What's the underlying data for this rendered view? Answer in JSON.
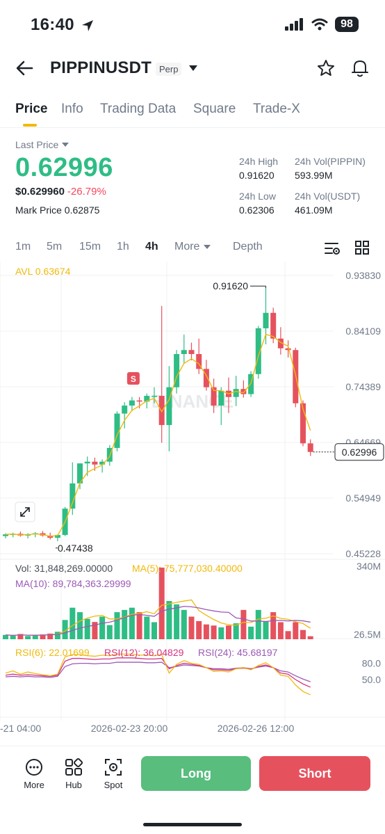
{
  "status_bar": {
    "time": "16:40",
    "battery": "98"
  },
  "header": {
    "title": "PIPPINUSDT",
    "badge": "Perp"
  },
  "tabs": [
    {
      "label": "Price"
    },
    {
      "label": "Info"
    },
    {
      "label": "Trading Data"
    },
    {
      "label": "Square"
    },
    {
      "label": "Trade-X"
    }
  ],
  "price": {
    "last_price_label": "Last Price",
    "last_price": "0.62996",
    "usd_price": "$0.629960",
    "change": "-26.79%",
    "mark_label": "Mark Price",
    "mark_price": "0.62875"
  },
  "stats": {
    "high_label": "24h High",
    "high_value": "0.91620",
    "low_label": "24h Low",
    "low_value": "0.62306",
    "vol_base_label": "24h Vol(PIPPIN)",
    "vol_base_value": "593.99M",
    "vol_quote_label": "24h Vol(USDT)",
    "vol_quote_value": "461.09M"
  },
  "intervals": {
    "items": [
      "1m",
      "5m",
      "15m",
      "1h",
      "4h"
    ],
    "active": "4h",
    "more": "More",
    "depth": "Depth"
  },
  "indicators": {
    "avl": "AVL 0.63674",
    "vol": "Vol: 31,848,269.00000",
    "vol_ma5": "MA(5): 75,777,030.40000",
    "vol_ma10": "MA(10): 89,784,363.29999",
    "rsi6": "RSI(6): 22.01699",
    "rsi12": "RSI(12): 36.04829",
    "rsi24": "RSI(24): 45.68197"
  },
  "colors": {
    "up": "#2ebd85",
    "down": "#e5525e",
    "ma_yellow": "#f0b90b",
    "ma_purple": "#9b59b6",
    "rsi_pink": "#d63384",
    "long": "#58bd7d",
    "short": "#e5525e"
  },
  "chart_data": {
    "type": "candlestick",
    "price_axis_ticks": [
      "0.93830",
      "0.84109",
      "0.74389",
      "0.64669",
      "0.54949",
      "0.45228"
    ],
    "price_range": [
      0.45228,
      0.9383
    ],
    "current_price_label": "0.62996",
    "current_price": 0.62996,
    "high_label": "0.91620",
    "high": 0.9162,
    "low_label": "0.47438",
    "low": 0.47438,
    "sell_marker": "S",
    "watermark": "BINANCE",
    "time_labels": [
      "-21 04:00",
      "2026-02-23 20:00",
      "2026-02-26 12:00"
    ],
    "volume_axis_ticks": [
      "340M",
      "26.5M"
    ],
    "volume_range": [
      26.5,
      340
    ],
    "rsi_axis_ticks": [
      "80.0",
      "50.0"
    ],
    "candles": [
      {
        "o": 0.483,
        "h": 0.488,
        "l": 0.479,
        "c": 0.486
      },
      {
        "o": 0.485,
        "h": 0.489,
        "l": 0.481,
        "c": 0.487
      },
      {
        "o": 0.487,
        "h": 0.491,
        "l": 0.482,
        "c": 0.484
      },
      {
        "o": 0.484,
        "h": 0.488,
        "l": 0.479,
        "c": 0.486
      },
      {
        "o": 0.486,
        "h": 0.49,
        "l": 0.481,
        "c": 0.488
      },
      {
        "o": 0.488,
        "h": 0.492,
        "l": 0.482,
        "c": 0.484
      },
      {
        "o": 0.484,
        "h": 0.489,
        "l": 0.477,
        "c": 0.48
      },
      {
        "o": 0.48,
        "h": 0.486,
        "l": 0.474,
        "c": 0.485
      },
      {
        "o": 0.485,
        "h": 0.534,
        "l": 0.483,
        "c": 0.531
      },
      {
        "o": 0.531,
        "h": 0.612,
        "l": 0.52,
        "c": 0.575
      },
      {
        "o": 0.575,
        "h": 0.61,
        "l": 0.565,
        "c": 0.61
      },
      {
        "o": 0.61,
        "h": 0.622,
        "l": 0.588,
        "c": 0.613
      },
      {
        "o": 0.613,
        "h": 0.62,
        "l": 0.597,
        "c": 0.608
      },
      {
        "o": 0.608,
        "h": 0.617,
        "l": 0.594,
        "c": 0.613
      },
      {
        "o": 0.613,
        "h": 0.642,
        "l": 0.606,
        "c": 0.637
      },
      {
        "o": 0.637,
        "h": 0.701,
        "l": 0.631,
        "c": 0.697
      },
      {
        "o": 0.697,
        "h": 0.717,
        "l": 0.671,
        "c": 0.711
      },
      {
        "o": 0.711,
        "h": 0.726,
        "l": 0.701,
        "c": 0.72
      },
      {
        "o": 0.72,
        "h": 0.726,
        "l": 0.706,
        "c": 0.718
      },
      {
        "o": 0.718,
        "h": 0.732,
        "l": 0.706,
        "c": 0.728
      },
      {
        "o": 0.728,
        "h": 0.743,
        "l": 0.715,
        "c": 0.728
      },
      {
        "o": 0.728,
        "h": 0.885,
        "l": 0.646,
        "c": 0.677
      },
      {
        "o": 0.677,
        "h": 0.78,
        "l": 0.631,
        "c": 0.743
      },
      {
        "o": 0.743,
        "h": 0.808,
        "l": 0.732,
        "c": 0.801
      },
      {
        "o": 0.801,
        "h": 0.835,
        "l": 0.785,
        "c": 0.808
      },
      {
        "o": 0.808,
        "h": 0.821,
        "l": 0.79,
        "c": 0.801
      },
      {
        "o": 0.801,
        "h": 0.828,
        "l": 0.766,
        "c": 0.775
      },
      {
        "o": 0.775,
        "h": 0.791,
        "l": 0.737,
        "c": 0.743
      },
      {
        "o": 0.743,
        "h": 0.758,
        "l": 0.698,
        "c": 0.711
      },
      {
        "o": 0.711,
        "h": 0.743,
        "l": 0.677,
        "c": 0.737
      },
      {
        "o": 0.737,
        "h": 0.76,
        "l": 0.698,
        "c": 0.726
      },
      {
        "o": 0.726,
        "h": 0.763,
        "l": 0.71,
        "c": 0.74
      },
      {
        "o": 0.74,
        "h": 0.755,
        "l": 0.725,
        "c": 0.731
      },
      {
        "o": 0.731,
        "h": 0.771,
        "l": 0.726,
        "c": 0.766
      },
      {
        "o": 0.766,
        "h": 0.85,
        "l": 0.758,
        "c": 0.846
      },
      {
        "o": 0.846,
        "h": 0.9162,
        "l": 0.818,
        "c": 0.873
      },
      {
        "o": 0.873,
        "h": 0.882,
        "l": 0.82,
        "c": 0.828
      },
      {
        "o": 0.828,
        "h": 0.848,
        "l": 0.8,
        "c": 0.811
      },
      {
        "o": 0.811,
        "h": 0.825,
        "l": 0.795,
        "c": 0.808
      },
      {
        "o": 0.808,
        "h": 0.812,
        "l": 0.708,
        "c": 0.715
      },
      {
        "o": 0.715,
        "h": 0.72,
        "l": 0.64,
        "c": 0.645
      },
      {
        "o": 0.645,
        "h": 0.652,
        "l": 0.623,
        "c": 0.63
      }
    ],
    "volumes": [
      38,
      34,
      42,
      33,
      36,
      40,
      44,
      52,
      105,
      160,
      140,
      110,
      96,
      120,
      82,
      140,
      150,
      160,
      140,
      120,
      95,
      340,
      190,
      175,
      150,
      120,
      100,
      85,
      80,
      72,
      80,
      90,
      150,
      75,
      150,
      100,
      140,
      95,
      55,
      95,
      60,
      32
    ],
    "rsi6": [
      62,
      66,
      60,
      64,
      61,
      59,
      57,
      60,
      92,
      96,
      96,
      94,
      93,
      95,
      94,
      97,
      97,
      97,
      95,
      95,
      94,
      96,
      62,
      78,
      85,
      80,
      78,
      72,
      65,
      66,
      64,
      70,
      72,
      68,
      76,
      81,
      72,
      58,
      56,
      40,
      28,
      22
    ],
    "rsi12": [
      58,
      60,
      58,
      59,
      58,
      57,
      56,
      58,
      84,
      89,
      89,
      88,
      87,
      88,
      88,
      90,
      90,
      90,
      89,
      88,
      88,
      89,
      70,
      76,
      80,
      78,
      76,
      72,
      68,
      68,
      67,
      70,
      71,
      69,
      74,
      77,
      72,
      62,
      60,
      50,
      42,
      36
    ],
    "rsi24": [
      55,
      56,
      55,
      56,
      55,
      55,
      54,
      56,
      74,
      79,
      80,
      80,
      79,
      80,
      80,
      82,
      82,
      82,
      82,
      81,
      81,
      82,
      72,
      74,
      77,
      76,
      75,
      72,
      70,
      70,
      69,
      71,
      72,
      70,
      73,
      75,
      72,
      66,
      64,
      57,
      51,
      46
    ]
  }
}
